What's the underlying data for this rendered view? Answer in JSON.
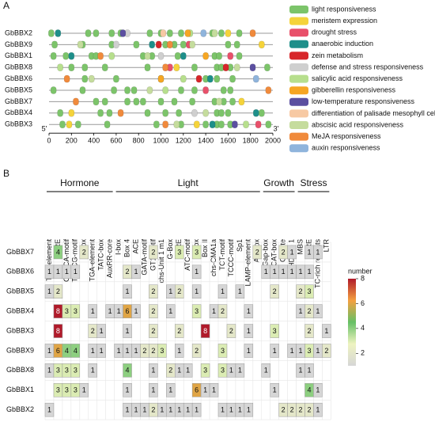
{
  "chart_data": [
    {
      "type": "motif",
      "panel_label": "A",
      "rows": [
        "GbBBX2",
        "GbBBX9",
        "GbBBX1",
        "GbBBX8",
        "GbBBX6",
        "GbBBX5",
        "GbBBX7",
        "GbBBX4",
        "GbBBX3"
      ],
      "xlim": [
        0,
        2000
      ],
      "xticks": [
        0,
        200,
        400,
        600,
        800,
        1000,
        1200,
        1400,
        1600,
        1800,
        2000
      ],
      "end_labels": [
        "5'",
        "3'"
      ],
      "series": [
        {
          "name": "light responsiveness",
          "color": "#7cc46a",
          "positions": [
            [
              20,
              350,
              420,
              560,
              640,
              900,
              1000,
              1080,
              1180,
              1460,
              1540,
              1700
            ],
            [
              50,
              300,
              560,
              780,
              1040,
              1120,
              1200,
              1600,
              1680
            ],
            [
              40,
              150,
              380,
              420,
              840,
              920,
              1150,
              1480,
              1520,
              1700
            ],
            [
              200,
              320,
              500,
              880,
              1300,
              1500,
              1540,
              1620,
              1950
            ],
            [
              320,
              600,
              1000,
              1400,
              1500,
              1640
            ],
            [
              40,
              300,
              580,
              700,
              760,
              1180,
              1300,
              1560,
              1620
            ],
            [
              420,
              500,
              700,
              780,
              840,
              1000,
              1120,
              1280,
              1480,
              1560,
              1640
            ],
            [
              100,
              460,
              540,
              880,
              1040,
              1160,
              1500,
              1540,
              1600,
              1900
            ],
            [
              120,
              260,
              520,
              960,
              1180,
              1400,
              1500,
              1540,
              1620,
              1960
            ]
          ]
        },
        {
          "name": "meristem expression",
          "color": "#f5d33a",
          "positions": [
            [
              1600
            ],
            [
              1900
            ],
            [],
            [
              1140
            ],
            [],
            [],
            [
              1720
            ],
            [
              200
            ],
            [
              180,
              1320
            ]
          ]
        },
        {
          "name": "drought stress",
          "color": "#e8506a",
          "positions": [
            [],
            [
              1250
            ],
            [
              1620
            ],
            [
              1080
            ],
            [],
            [
              1400
            ],
            [],
            [],
            [
              1870
            ]
          ]
        },
        {
          "name": "anaerobic induction",
          "color": "#1e8f8a",
          "positions": [
            [
              80
            ],
            [
              920
            ],
            [
              200,
              1200
            ],
            [],
            [
              1440
            ],
            [],
            [],
            [
              1850
            ],
            [
              1460
            ]
          ]
        },
        {
          "name": "zein metabolism",
          "color": "#d7262a",
          "positions": [
            [],
            [
              980
            ],
            [],
            [
              1580
            ],
            [
              1340
            ],
            [],
            [],
            [],
            []
          ]
        },
        {
          "name": "defense and stress responsiveness",
          "color": "#cfcfcf",
          "positions": [
            [
              700
            ],
            [
              600
            ],
            [
              1000
            ],
            [],
            [],
            [],
            [],
            [
              1300
            ],
            []
          ]
        },
        {
          "name": "salicylic acid responsiveness",
          "color": "#b7df8d",
          "positions": [
            [
              1260
            ],
            [],
            [
              560
            ],
            [
              100
            ],
            [
              1200
            ],
            [
              1040
            ],
            [],
            [],
            [
              1760
            ]
          ]
        },
        {
          "name": "gibberellin responsiveness",
          "color": "#f6a623",
          "positions": [
            [
              1240
            ],
            [],
            [
              1400
            ],
            [],
            [
              1000
            ],
            [],
            [],
            [],
            []
          ]
        },
        {
          "name": "low-temperature responsiveness",
          "color": "#5b4fa0",
          "positions": [
            [
              660
            ],
            [],
            [],
            [
              1820
            ],
            [],
            [],
            [],
            [],
            [
              1660
            ]
          ]
        },
        {
          "name": "differentiation of palisade mesophyll cells",
          "color": "#f7c9a3",
          "positions": [
            [
              1020
            ],
            [],
            [],
            [],
            [],
            [],
            [],
            [],
            []
          ]
        },
        {
          "name": "abscisic acid responsiveness",
          "color": "#c5dc9d",
          "positions": [
            [
              1480
            ],
            [
              280,
              1280
            ],
            [
              880
            ],
            [
              1680
            ],
            [
              380
            ],
            [
              900
            ],
            [
              1520
            ],
            [
              1400
            ],
            [
              1140
            ]
          ]
        },
        {
          "name": "MeJA responsiveness",
          "color": "#f08a3c",
          "positions": [
            [
              1820
            ],
            [
              1080
            ],
            [
              460
            ],
            [
              1040
            ],
            [
              160
            ],
            [
              1960
            ],
            [
              240
            ],
            [
              640
            ],
            [
              1040
            ]
          ]
        },
        {
          "name": "auxin responsiveness",
          "color": "#8fb4dc",
          "positions": [
            [
              1380
            ],
            [],
            [],
            [],
            [
              1850
            ],
            [],
            [],
            [],
            []
          ]
        }
      ]
    },
    {
      "type": "heatmap",
      "panel_label": "B",
      "rows": [
        "GbBBX7",
        "GbBBX6",
        "GbBBX5",
        "GbBBX4",
        "GbBBX3",
        "GbBBX9",
        "GbBBX8",
        "GbBBX1",
        "GbBBX2"
      ],
      "column_groups": [
        {
          "label": "Hormone",
          "columns": [
            "TCA-element",
            "ABRE",
            "CGTCA-motif",
            "TGACG-motif",
            "P-box",
            "TGA-element",
            "TATC-box",
            "AuxRR-core"
          ]
        },
        {
          "label": "Light",
          "columns": [
            "I-box",
            "Box 4",
            "ACE",
            "GATA-motif",
            "GT1-motif",
            "chs-Unit 1 m1",
            "G-Box",
            "MRE",
            "ATC-motif",
            "G-box",
            "Box II",
            "chs-CMA1a",
            "TCT-motif",
            "TCCC-motif",
            "Sp1",
            "LAMP-element",
            "AE-box"
          ]
        },
        {
          "label": "Growth",
          "columns": [
            "Gap-box",
            "CAT-box",
            "O2-site",
            "HD-Zip 1"
          ]
        },
        {
          "label": "Stress",
          "columns": [
            "MBS",
            "ARE",
            "TC-rich repeats",
            "LTR"
          ]
        }
      ],
      "values": [
        [
          null,
          4,
          null,
          null,
          2,
          null,
          null,
          null,
          null,
          null,
          null,
          null,
          2,
          null,
          null,
          3,
          null,
          3,
          null,
          null,
          null,
          null,
          null,
          null,
          2,
          null,
          null,
          2,
          1,
          null,
          1,
          1,
          null
        ],
        [
          1,
          1,
          1,
          1,
          null,
          null,
          null,
          null,
          null,
          2,
          1,
          null,
          null,
          null,
          null,
          null,
          null,
          1,
          null,
          null,
          null,
          null,
          null,
          null,
          null,
          1,
          1,
          1,
          1,
          1,
          1,
          null,
          null
        ],
        [
          1,
          2,
          null,
          null,
          null,
          null,
          null,
          null,
          null,
          1,
          null,
          null,
          2,
          null,
          1,
          2,
          null,
          1,
          null,
          null,
          1,
          null,
          1,
          null,
          null,
          null,
          2,
          null,
          null,
          2,
          3,
          null,
          null
        ],
        [
          null,
          8,
          3,
          3,
          null,
          1,
          null,
          1,
          1,
          6,
          1,
          null,
          2,
          null,
          1,
          null,
          null,
          3,
          null,
          1,
          2,
          null,
          null,
          1,
          null,
          null,
          null,
          null,
          null,
          1,
          2,
          1,
          null
        ],
        [
          null,
          8,
          null,
          null,
          null,
          2,
          1,
          null,
          null,
          1,
          null,
          null,
          2,
          null,
          null,
          2,
          null,
          null,
          8,
          null,
          null,
          2,
          null,
          1,
          null,
          null,
          3,
          null,
          null,
          null,
          2,
          null,
          1
        ],
        [
          1,
          6,
          4,
          4,
          null,
          1,
          1,
          null,
          1,
          1,
          1,
          2,
          2,
          3,
          null,
          1,
          null,
          2,
          null,
          null,
          3,
          null,
          null,
          1,
          null,
          null,
          1,
          null,
          1,
          1,
          3,
          1,
          2
        ],
        [
          1,
          3,
          3,
          3,
          null,
          1,
          null,
          null,
          null,
          4,
          null,
          null,
          1,
          null,
          2,
          1,
          1,
          null,
          3,
          null,
          3,
          1,
          1,
          null,
          null,
          1,
          null,
          null,
          null,
          1,
          1,
          null,
          null
        ],
        [
          null,
          3,
          3,
          3,
          1,
          null,
          null,
          null,
          null,
          1,
          null,
          null,
          1,
          null,
          1,
          null,
          null,
          6,
          1,
          1,
          null,
          null,
          null,
          null,
          null,
          null,
          1,
          null,
          null,
          null,
          4,
          1,
          null
        ],
        [
          1,
          null,
          null,
          null,
          null,
          null,
          null,
          null,
          null,
          1,
          1,
          1,
          2,
          1,
          1,
          1,
          1,
          1,
          null,
          null,
          1,
          1,
          1,
          1,
          null,
          null,
          null,
          2,
          2,
          2,
          2,
          1,
          null
        ]
      ],
      "colorbar_title": "number",
      "colorbar_lim": [
        1,
        8
      ],
      "colorbar_ticks": [
        2,
        4,
        6,
        8
      ],
      "colorscale": [
        "#d6d6d6",
        "#eef3c0",
        "#66c066",
        "#f4a040",
        "#b01a2a"
      ]
    }
  ]
}
